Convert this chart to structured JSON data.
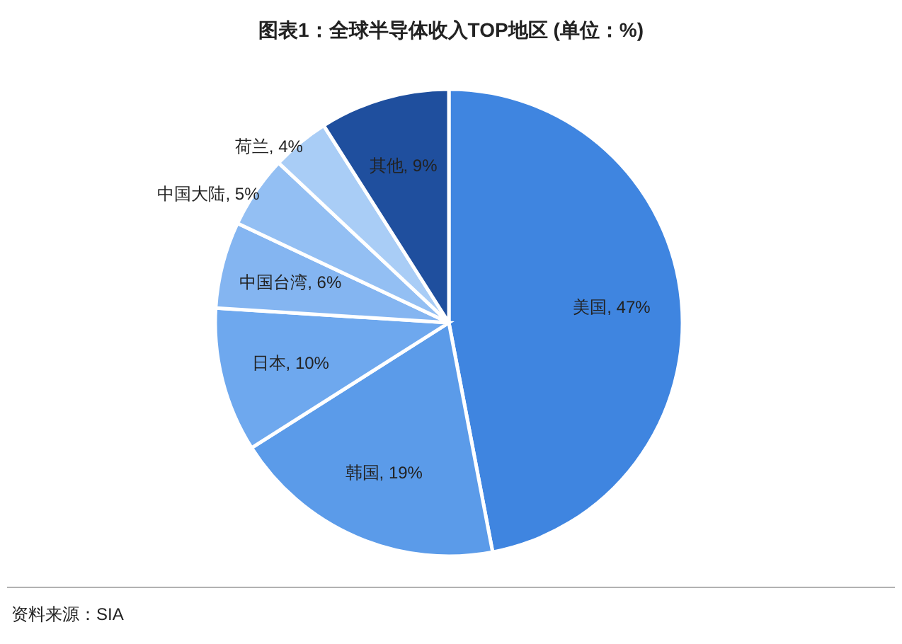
{
  "chart_data": {
    "type": "pie",
    "title": "图表1：全球半导体收入TOP地区 (单位：%)",
    "categories": [
      "美国",
      "韩国",
      "日本",
      "中国台湾",
      "中国大陆",
      "荷兰",
      "其他"
    ],
    "values": [
      47,
      19,
      10,
      6,
      5,
      4,
      9
    ],
    "value_labels": [
      ", 47%",
      ", 19%",
      ", 10%",
      ", 6%",
      ", 5%",
      ", 4%",
      ", 9%"
    ],
    "colors": [
      "#3f85e0",
      "#5b9be9",
      "#6ea8ee",
      "#84b5f1",
      "#93bff3",
      "#a9cdf6",
      "#1f4f9e"
    ],
    "annotations": [
      "资料来源：SIA"
    ]
  }
}
